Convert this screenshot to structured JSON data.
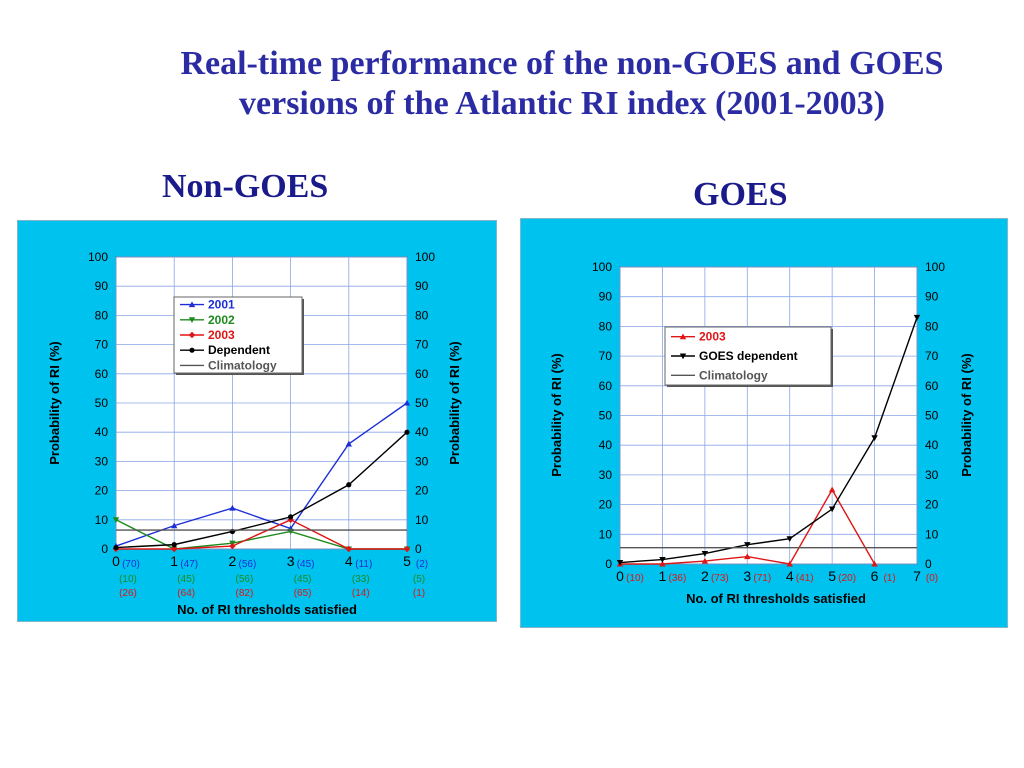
{
  "title_line1": "Real-time performance of the non-GOES and GOES",
  "title_line2": "versions of the Atlantic RI index (2001-2003)",
  "chart_data": [
    {
      "type": "line",
      "heading": "Non-GOES",
      "xlabel": "No. of RI thresholds satisfied",
      "ylabel": "Probability of RI (%)",
      "ylabel_right": "Probability of RI (%)",
      "xlim": [
        0,
        5
      ],
      "ylim": [
        0,
        100
      ],
      "x_ticks": [
        "0",
        "1",
        "2",
        "3",
        "4",
        "5"
      ],
      "y_ticks": [
        "0",
        "10",
        "20",
        "30",
        "40",
        "50",
        "60",
        "70",
        "80",
        "90",
        "100"
      ],
      "grid": true,
      "legend_position": "top-center",
      "series": [
        {
          "name": "2001",
          "color": "#1c2fd6",
          "marker": "triangle-up",
          "x": [
            0,
            1,
            2,
            3,
            4,
            5
          ],
          "y": [
            1,
            8,
            14,
            7,
            36,
            50
          ]
        },
        {
          "name": "2002",
          "color": "#1e8a1e",
          "marker": "triangle-down",
          "x": [
            0,
            1,
            2,
            3,
            4,
            5
          ],
          "y": [
            10,
            0,
            2,
            6,
            0,
            0
          ]
        },
        {
          "name": "2003",
          "color": "#e01515",
          "marker": "diamond",
          "x": [
            0,
            1,
            2,
            3,
            4,
            5
          ],
          "y": [
            0,
            0,
            1,
            10,
            0,
            0
          ]
        },
        {
          "name": "Dependent",
          "color": "#000000",
          "marker": "circle",
          "x": [
            0,
            1,
            2,
            3,
            4,
            5
          ],
          "y": [
            0.5,
            1.5,
            6,
            11,
            22,
            40
          ]
        },
        {
          "name": "Climatology",
          "color": "#555555",
          "marker": "none",
          "x": [
            0,
            5
          ],
          "y": [
            6.5,
            6.5
          ]
        }
      ],
      "count_rows": [
        {
          "color": "#1c2fd6",
          "values": [
            "(70)",
            "(47)",
            "(56)",
            "(45)",
            "(11)",
            "(2)"
          ]
        },
        {
          "color": "#1e8a1e",
          "values": [
            "(10)",
            "(45)",
            "(56)",
            "(45)",
            "(33)",
            "(5)"
          ]
        },
        {
          "color": "#e01515",
          "values": [
            "(26)",
            "(64)",
            "(82)",
            "(65)",
            "(14)",
            "(1)"
          ]
        }
      ]
    },
    {
      "type": "line",
      "heading": "GOES",
      "xlabel": "No. of RI thresholds satisfied",
      "ylabel": "Probability of RI (%)",
      "ylabel_right": "Probability of RI (%)",
      "xlim": [
        0,
        7
      ],
      "ylim": [
        0,
        100
      ],
      "x_ticks": [
        "0",
        "1",
        "2",
        "3",
        "4",
        "5",
        "6",
        "7"
      ],
      "y_ticks": [
        "0",
        "10",
        "20",
        "30",
        "40",
        "50",
        "60",
        "70",
        "80",
        "90",
        "100"
      ],
      "grid": true,
      "legend_position": "top-left",
      "series": [
        {
          "name": "2003",
          "color": "#e01515",
          "marker": "triangle-up",
          "x": [
            0,
            1,
            2,
            3,
            4,
            5,
            6,
            7
          ],
          "y": [
            0,
            0,
            1,
            2.5,
            0,
            25,
            0,
            null
          ]
        },
        {
          "name": "GOES dependent",
          "color": "#000000",
          "marker": "triangle-down",
          "x": [
            0,
            1,
            2,
            3,
            4,
            5,
            6,
            7
          ],
          "y": [
            0.5,
            1.5,
            3.5,
            6.5,
            8.5,
            18.5,
            42.5,
            83
          ]
        },
        {
          "name": "Climatology",
          "color": "#555555",
          "marker": "none",
          "x": [
            0,
            7
          ],
          "y": [
            5.5,
            5.5
          ]
        }
      ],
      "count_rows": [
        {
          "color": "#e01515",
          "values": [
            "(10)",
            "(36)",
            "(73)",
            "(71)",
            "(41)",
            "(20)",
            "(1)",
            "(0)"
          ]
        }
      ]
    }
  ]
}
